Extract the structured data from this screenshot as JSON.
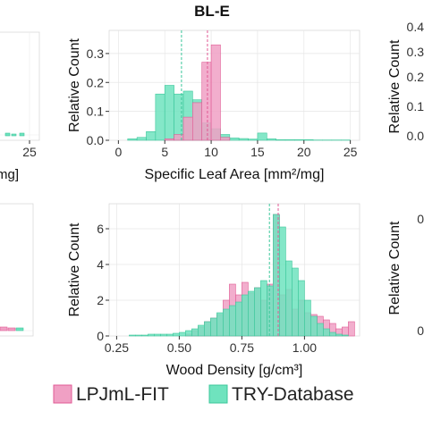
{
  "panel_title": "BL-E",
  "legend": {
    "entries": [
      {
        "label": "LPJmL-FIT",
        "color": "#f0a0c4"
      },
      {
        "label": "TRY-Database",
        "color": "#6fe3be"
      }
    ]
  },
  "partial_panels": {
    "top_left": {
      "tick_label": "25",
      "xlabel_fragment": "mg]"
    },
    "top_right": {
      "ylabel": "Relative Count",
      "tick_labels": [
        "0.4",
        "0.3",
        "0.2",
        "0.1",
        "0.0"
      ]
    },
    "bottom_right": {
      "ylabel": "Relative Count",
      "tick_labels": [
        "0",
        "0"
      ]
    }
  },
  "colors": {
    "lpjml_fill": "#f0a0c4",
    "lpjml_edge": "#e05a94",
    "try_fill": "#6fe3be",
    "try_edge": "#3cc79b",
    "panel_bg": "#ffffff",
    "grid": "#e6e6e6"
  },
  "chart_data": [
    {
      "type": "histogram",
      "title": "BL-E",
      "xlabel": "Specific Leaf Area [mm²/mg]",
      "ylabel": "Relative Count",
      "xlim": [
        -1,
        26
      ],
      "ylim": [
        0,
        0.38
      ],
      "xticks": [
        0,
        5,
        10,
        15,
        20,
        25
      ],
      "xtick_labels": [
        "0",
        "5",
        "10",
        "15",
        "20",
        "25"
      ],
      "yticks": [
        0,
        0.1,
        0.2,
        0.3
      ],
      "ytick_labels": [
        "0.0",
        "0.1",
        "0.2",
        "0.3"
      ],
      "grid": true,
      "bin_width": 1,
      "series": [
        {
          "name": "TRY-Database",
          "bin_starts": [
            1,
            2,
            3,
            4,
            5,
            6,
            7,
            8,
            9,
            10,
            11,
            12,
            13,
            14,
            15,
            16,
            17,
            18,
            19,
            20,
            21,
            22,
            23,
            24
          ],
          "values": [
            0.005,
            0.01,
            0.03,
            0.16,
            0.19,
            0.16,
            0.17,
            0.14,
            0.06,
            0.04,
            0.02,
            0.008,
            0.006,
            0.004,
            0.025,
            0.005,
            0.002,
            0.002,
            0.002,
            0.002,
            0.001,
            0.001,
            0.001,
            0.001
          ]
        },
        {
          "name": "LPJmL-FIT",
          "bin_starts": [
            5,
            6,
            7,
            8,
            9,
            10,
            11
          ],
          "values": [
            0.005,
            0.02,
            0.08,
            0.13,
            0.27,
            0.33,
            0.01
          ]
        }
      ],
      "vlines": [
        {
          "series": "TRY-Database",
          "x": 6.8
        },
        {
          "series": "LPJmL-FIT",
          "x": 9.6
        }
      ]
    },
    {
      "type": "histogram",
      "title": "",
      "xlabel": "Wood Density [g/cm³]",
      "ylabel": "Relative Count",
      "xlim": [
        0.22,
        1.22
      ],
      "ylim": [
        0,
        7.4
      ],
      "xticks": [
        0.25,
        0.5,
        0.75,
        1.0
      ],
      "xtick_labels": [
        "0.25",
        "0.50",
        "0.75",
        "1.00"
      ],
      "yticks": [
        0,
        2,
        4,
        6
      ],
      "ytick_labels": [
        "0",
        "2",
        "4",
        "6"
      ],
      "grid": true,
      "bin_width": 0.025,
      "series": [
        {
          "name": "LPJmL-FIT",
          "bin_starts": [
            0.525,
            0.55,
            0.575,
            0.6,
            0.625,
            0.65,
            0.675,
            0.7,
            0.725,
            0.75,
            0.775,
            0.8,
            0.825,
            0.85,
            0.875,
            0.9,
            0.925,
            0.95,
            0.975,
            1.0,
            1.025,
            1.05,
            1.075,
            1.1,
            1.125,
            1.15,
            1.175
          ],
          "values": [
            0.1,
            0.3,
            0.5,
            0.8,
            1.0,
            1.2,
            2.0,
            2.9,
            2.3,
            3.0,
            2.4,
            2.7,
            2.0,
            2.9,
            6.8,
            2.3,
            2.6,
            1.5,
            2.0,
            1.3,
            1.2,
            1.1,
            0.9,
            0.7,
            0.4,
            0.5,
            0.8
          ]
        },
        {
          "name": "TRY-Database",
          "bin_starts": [
            0.3,
            0.325,
            0.35,
            0.375,
            0.4,
            0.425,
            0.45,
            0.475,
            0.5,
            0.525,
            0.55,
            0.575,
            0.6,
            0.625,
            0.65,
            0.675,
            0.7,
            0.725,
            0.75,
            0.775,
            0.8,
            0.825,
            0.85,
            0.875,
            0.9,
            0.925,
            0.95,
            0.975,
            1.0,
            1.025,
            1.05,
            1.075,
            1.1,
            1.125,
            1.15
          ],
          "values": [
            0.05,
            0.05,
            0.05,
            0.1,
            0.1,
            0.1,
            0.1,
            0.15,
            0.2,
            0.3,
            0.4,
            0.6,
            0.8,
            1.0,
            1.3,
            1.5,
            1.7,
            1.9,
            2.3,
            2.5,
            2.7,
            3.1,
            2.8,
            6.8,
            6.1,
            4.2,
            3.8,
            3.1,
            2.0,
            1.1,
            0.7,
            0.4,
            0.2,
            0.1,
            0.05
          ]
        }
      ],
      "vlines": [
        {
          "series": "TRY-Database",
          "x": 0.86
        },
        {
          "series": "LPJmL-FIT",
          "x": 0.895
        }
      ]
    }
  ]
}
